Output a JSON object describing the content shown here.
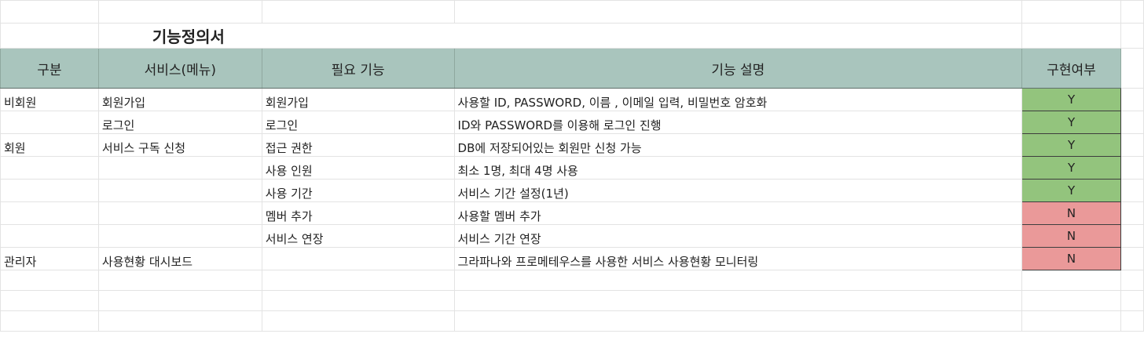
{
  "title": "기능정의서",
  "headers": {
    "category": "구분",
    "service": "서비스(메뉴)",
    "feature": "필요 기능",
    "description": "기능 설명",
    "implemented": "구현여부"
  },
  "rows": [
    {
      "category": "비회원",
      "service": "회원가입",
      "feature": "회원가입",
      "description": "사용할 ID, PASSWORD, 이름 , 이메일 입력, 비밀번호 암호화",
      "implemented": "Y"
    },
    {
      "category": "",
      "service": "로그인",
      "feature": "로그인",
      "description": "ID와 PASSWORD를 이용해 로그인 진행",
      "implemented": "Y"
    },
    {
      "category": "회원",
      "service": "서비스 구독 신청",
      "feature": "접근 권한",
      "description": "DB에 저장되어있는 회원만 신청 가능",
      "implemented": "Y"
    },
    {
      "category": "",
      "service": "",
      "feature": "사용 인원",
      "description": "최소 1명, 최대 4명 사용",
      "implemented": "Y"
    },
    {
      "category": "",
      "service": "",
      "feature": "사용 기간",
      "description": "서비스 기간 설정(1년)",
      "implemented": "Y"
    },
    {
      "category": "",
      "service": "",
      "feature": "멤버 추가",
      "description": "사용할 멤버 추가",
      "implemented": "N"
    },
    {
      "category": "",
      "service": "",
      "feature": "서비스 연장",
      "description": "서비스 기간 연장",
      "implemented": "N"
    },
    {
      "category": "관리자",
      "service": "사용현황 대시보드",
      "feature": "",
      "description": "그라파나와 프로메테우스를 사용한 서비스 사용현황 모니터링",
      "implemented": "N"
    }
  ],
  "colors": {
    "header_bg": "#a9c5bd",
    "yes_bg": "#93c47d",
    "no_bg": "#ea9999"
  }
}
